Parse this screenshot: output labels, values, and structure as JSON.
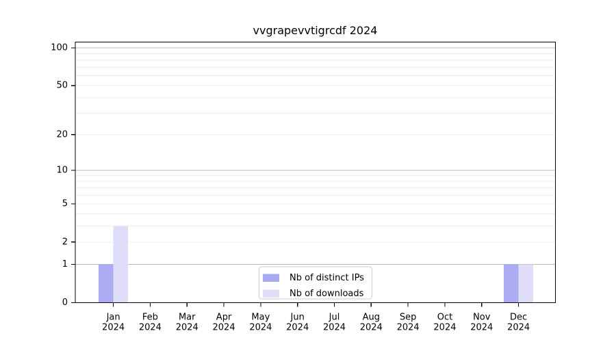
{
  "chart_data": {
    "type": "bar",
    "title": "vvgrapevvtigrcdf 2024",
    "categories": [
      "Jan",
      "Feb",
      "Mar",
      "Apr",
      "May",
      "Jun",
      "Jul",
      "Aug",
      "Sep",
      "Oct",
      "Nov",
      "Dec"
    ],
    "year": "2024",
    "series": [
      {
        "name": "Nb of distinct IPs",
        "color": "#ababf3",
        "values": [
          1,
          0,
          0,
          0,
          0,
          0,
          0,
          0,
          0,
          0,
          0,
          1
        ]
      },
      {
        "name": "Nb of downloads",
        "color": "#dedef9",
        "values": [
          3,
          0,
          0,
          0,
          0,
          0,
          0,
          0,
          0,
          0,
          0,
          1
        ]
      }
    ],
    "yscale": "log1p",
    "ylim": [
      0,
      105
    ],
    "y_ticks": [
      0,
      1,
      2,
      5,
      10,
      20,
      50,
      100
    ],
    "y_gridlines_major": [
      1,
      10,
      100
    ],
    "y_gridlines_minor": [
      2,
      3,
      4,
      5,
      6,
      7,
      8,
      9,
      20,
      30,
      40,
      50,
      60,
      70,
      80,
      90
    ],
    "grid": true,
    "legend_position": "lower center",
    "colors": {
      "grid_major": "#b9b9b9",
      "grid_minor": "#ededed",
      "axis": "#000000",
      "background": "#ffffff",
      "text": "#000000"
    }
  }
}
